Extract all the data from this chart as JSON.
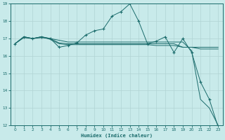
{
  "xlabel": "Humidex (Indice chaleur)",
  "xlim": [
    -0.5,
    23.5
  ],
  "ylim": [
    12,
    19
  ],
  "yticks": [
    12,
    13,
    14,
    15,
    16,
    17,
    18,
    19
  ],
  "xticks": [
    0,
    1,
    2,
    3,
    4,
    5,
    6,
    7,
    8,
    9,
    10,
    11,
    12,
    13,
    14,
    15,
    16,
    17,
    18,
    19,
    20,
    21,
    22,
    23
  ],
  "bg_color": "#c8eaea",
  "grid_color": "#b0d4d4",
  "line_color": "#1a6b6b",
  "line1_y": [
    16.7,
    17.1,
    17.0,
    17.1,
    17.0,
    16.5,
    16.6,
    16.75,
    17.2,
    17.45,
    17.55,
    18.3,
    18.55,
    19.0,
    18.0,
    16.7,
    16.85,
    17.1,
    16.2,
    17.0,
    16.2,
    14.5,
    13.5,
    11.9
  ],
  "line2_y": [
    16.7,
    17.1,
    17.0,
    17.1,
    16.95,
    16.7,
    16.65,
    16.65,
    16.65,
    16.65,
    16.65,
    16.65,
    16.65,
    16.65,
    16.65,
    16.65,
    16.6,
    16.6,
    16.6,
    16.5,
    16.5,
    16.4,
    16.4,
    16.4
  ],
  "line3_y": [
    16.7,
    17.05,
    17.0,
    17.05,
    17.0,
    16.9,
    16.8,
    16.8,
    16.8,
    16.8,
    16.8,
    16.8,
    16.8,
    16.8,
    16.8,
    16.8,
    16.8,
    16.8,
    16.8,
    16.8,
    16.3,
    13.5,
    13.0,
    12.0
  ],
  "line4_y": [
    16.7,
    17.1,
    17.0,
    17.1,
    17.0,
    16.75,
    16.7,
    16.7,
    16.7,
    16.7,
    16.7,
    16.7,
    16.7,
    16.7,
    16.7,
    16.7,
    16.7,
    16.7,
    16.7,
    16.5,
    16.5,
    16.5,
    16.5,
    16.5
  ]
}
